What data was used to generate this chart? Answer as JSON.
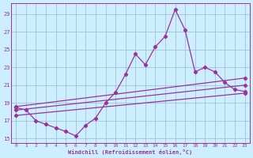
{
  "xlabel": "Windchill (Refroidissement éolien,°C)",
  "background_color": "#cceeff",
  "grid_color": "#99bbcc",
  "line_color": "#993399",
  "x_data": [
    0,
    1,
    2,
    3,
    4,
    5,
    6,
    7,
    8,
    9,
    10,
    11,
    12,
    13,
    14,
    15,
    16,
    17,
    18,
    19,
    20,
    21,
    22,
    23
  ],
  "y_main": [
    18.5,
    18.2,
    17.0,
    16.6,
    16.2,
    15.8,
    15.3,
    16.5,
    17.3,
    19.0,
    20.2,
    22.2,
    24.5,
    23.3,
    25.3,
    26.5,
    29.5,
    27.2,
    22.5,
    23.0,
    22.5,
    21.3,
    20.5,
    20.3
  ],
  "trend1_start": 18.6,
  "trend1_end": 21.8,
  "trend2_start": 18.2,
  "trend2_end": 21.0,
  "trend3_start": 17.6,
  "trend3_end": 20.1,
  "ylim": [
    14.5,
    30.2
  ],
  "xlim": [
    -0.5,
    23.5
  ],
  "yticks": [
    15,
    17,
    19,
    21,
    23,
    25,
    27,
    29
  ],
  "xticks": [
    0,
    1,
    2,
    3,
    4,
    5,
    6,
    7,
    8,
    9,
    10,
    11,
    12,
    13,
    14,
    15,
    16,
    17,
    18,
    19,
    20,
    21,
    22,
    23
  ]
}
